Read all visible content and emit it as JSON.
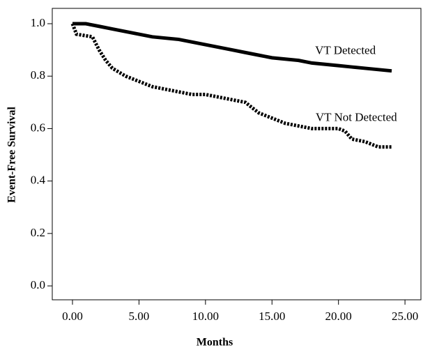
{
  "chart_data": {
    "type": "line",
    "xlabel": "Months",
    "ylabel": "Event-Free Survival",
    "xlim": [
      -1.52,
      26.2
    ],
    "ylim": [
      -0.053,
      1.0585
    ],
    "xticks": [
      {
        "value": 0,
        "label": "0.00"
      },
      {
        "value": 5,
        "label": "5.00"
      },
      {
        "value": 10,
        "label": "10.00"
      },
      {
        "value": 15,
        "label": "15.00"
      },
      {
        "value": 20,
        "label": "20.00"
      },
      {
        "value": 25,
        "label": "25.00"
      }
    ],
    "yticks": [
      {
        "value": 0,
        "label": "0.0"
      },
      0.2,
      0.4,
      0.6,
      0.8,
      {
        "value": 1,
        "label": "1.0"
      }
    ],
    "series": [
      {
        "name": "VT Detected",
        "color": "#000000",
        "line_style": "solid",
        "x": [
          0,
          1,
          2,
          3,
          4,
          5,
          6,
          7,
          8,
          9,
          10,
          11,
          12,
          13,
          14,
          15,
          16,
          17,
          18,
          19,
          20,
          21,
          22,
          23,
          24
        ],
        "values": [
          1.0,
          1.0,
          0.99,
          0.98,
          0.97,
          0.96,
          0.95,
          0.945,
          0.94,
          0.93,
          0.92,
          0.91,
          0.9,
          0.89,
          0.88,
          0.87,
          0.865,
          0.86,
          0.85,
          0.845,
          0.84,
          0.835,
          0.83,
          0.825,
          0.82
        ],
        "label_at": [
          22.8,
          0.895
        ]
      },
      {
        "name": "VT Not Detected",
        "color": "#000000",
        "line_style": "dashed",
        "x": [
          0,
          0.3,
          1.5,
          2,
          2.5,
          3,
          4,
          5,
          6,
          7,
          8,
          9,
          10,
          11,
          12,
          13,
          13.5,
          14,
          15,
          16,
          17,
          18,
          19,
          20,
          20.5,
          21,
          22,
          23,
          24
        ],
        "values": [
          1.0,
          0.96,
          0.95,
          0.9,
          0.86,
          0.83,
          0.8,
          0.78,
          0.76,
          0.75,
          0.74,
          0.73,
          0.73,
          0.72,
          0.71,
          0.7,
          0.68,
          0.66,
          0.64,
          0.62,
          0.61,
          0.6,
          0.6,
          0.6,
          0.59,
          0.56,
          0.55,
          0.53,
          0.53
        ],
        "label_at": [
          24.4,
          0.64
        ]
      }
    ]
  }
}
